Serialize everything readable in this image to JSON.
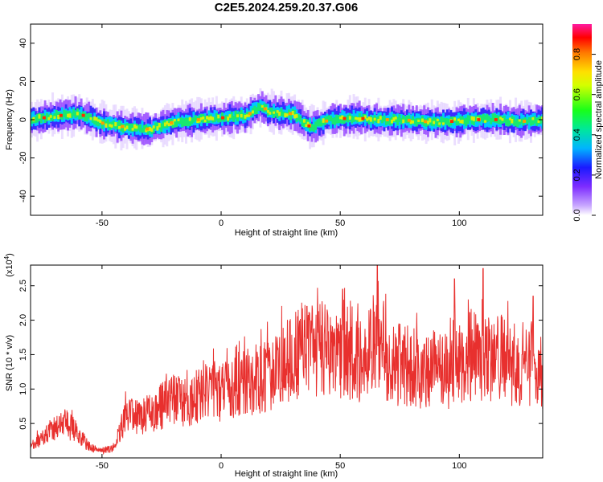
{
  "title": "C2E5.2024.259.20.37.G06",
  "colors": {
    "snr_line": "#e8302e",
    "axes": "#000000",
    "background": "#ffffff"
  },
  "chart_data": [
    {
      "type": "heatmap",
      "xlabel": "Height of straight line (km)",
      "ylabel": "Frequency (Hz)",
      "xlim": [
        -80,
        135
      ],
      "ylim": [
        -50,
        50
      ],
      "xticks": [
        -50,
        0,
        50,
        100
      ],
      "yticks": [
        -40,
        -20,
        0,
        20,
        40
      ],
      "colorbar": {
        "label": "Normalized spectral amplitude",
        "range": [
          0.0,
          0.95
        ],
        "ticks": [
          0.0,
          0.2,
          0.4,
          0.6,
          0.8
        ],
        "tick_labels": [
          "0.0",
          "0.2",
          "0.4",
          "0.6",
          "0.8"
        ],
        "colormap": "rainbow (white-violet-blue-cyan-green-yellow-orange-red-magenta)"
      },
      "ridge": {
        "x": [
          -80,
          -70,
          -60,
          -50,
          -40,
          -30,
          -20,
          -10,
          0,
          10,
          16,
          20,
          30,
          37,
          45,
          55,
          65,
          75,
          85,
          95,
          105,
          115,
          125,
          135
        ],
        "y": [
          0,
          2,
          3,
          -2,
          -4,
          -5,
          -1,
          0,
          1,
          2,
          7,
          4,
          3,
          -4,
          0,
          1,
          0,
          0,
          -1,
          -1,
          0,
          0,
          -1,
          0
        ]
      }
    },
    {
      "type": "line",
      "xlabel": "Height of straight line (km)",
      "ylabel": "SNR (10 * v/v)",
      "yscale_label": "(x10^4)",
      "xlim": [
        -80,
        135
      ],
      "ylim": [
        0,
        2.8
      ],
      "xticks": [
        -50,
        0,
        50,
        100
      ],
      "yticks": [
        0.5,
        1.0,
        1.5,
        2.0,
        2.5
      ],
      "series": [
        {
          "x": [
            -80,
            -75,
            -70,
            -65,
            -60,
            -55,
            -50,
            -45,
            -40,
            -35,
            -30,
            -25,
            -20,
            -15,
            -10,
            -5,
            0,
            5,
            10,
            15,
            20,
            25,
            30,
            35,
            40,
            45,
            50,
            55,
            60,
            65,
            70,
            75,
            80,
            85,
            90,
            95,
            100,
            105,
            110,
            115,
            120,
            125,
            130,
            135
          ],
          "values": [
            0.15,
            0.3,
            0.45,
            0.5,
            0.35,
            0.15,
            0.1,
            0.15,
            0.6,
            0.6,
            0.65,
            0.75,
            0.85,
            0.8,
            0.9,
            1.0,
            0.95,
            1.0,
            1.15,
            1.1,
            1.2,
            1.3,
            1.45,
            1.55,
            1.6,
            1.55,
            1.5,
            1.45,
            1.4,
            1.6,
            1.4,
            1.35,
            1.35,
            1.2,
            1.3,
            1.25,
            1.3,
            1.5,
            1.35,
            1.5,
            1.4,
            1.2,
            1.35,
            1.25
          ],
          "peaks": [
            {
              "x": 65.5,
              "y": 2.8
            },
            {
              "x": 51,
              "y": 2.45
            },
            {
              "x": 110,
              "y": 2.75
            },
            {
              "x": 98,
              "y": 2.6
            },
            {
              "x": 131,
              "y": 2.35
            },
            {
              "x": 36,
              "y": 2.2
            }
          ]
        }
      ]
    }
  ]
}
